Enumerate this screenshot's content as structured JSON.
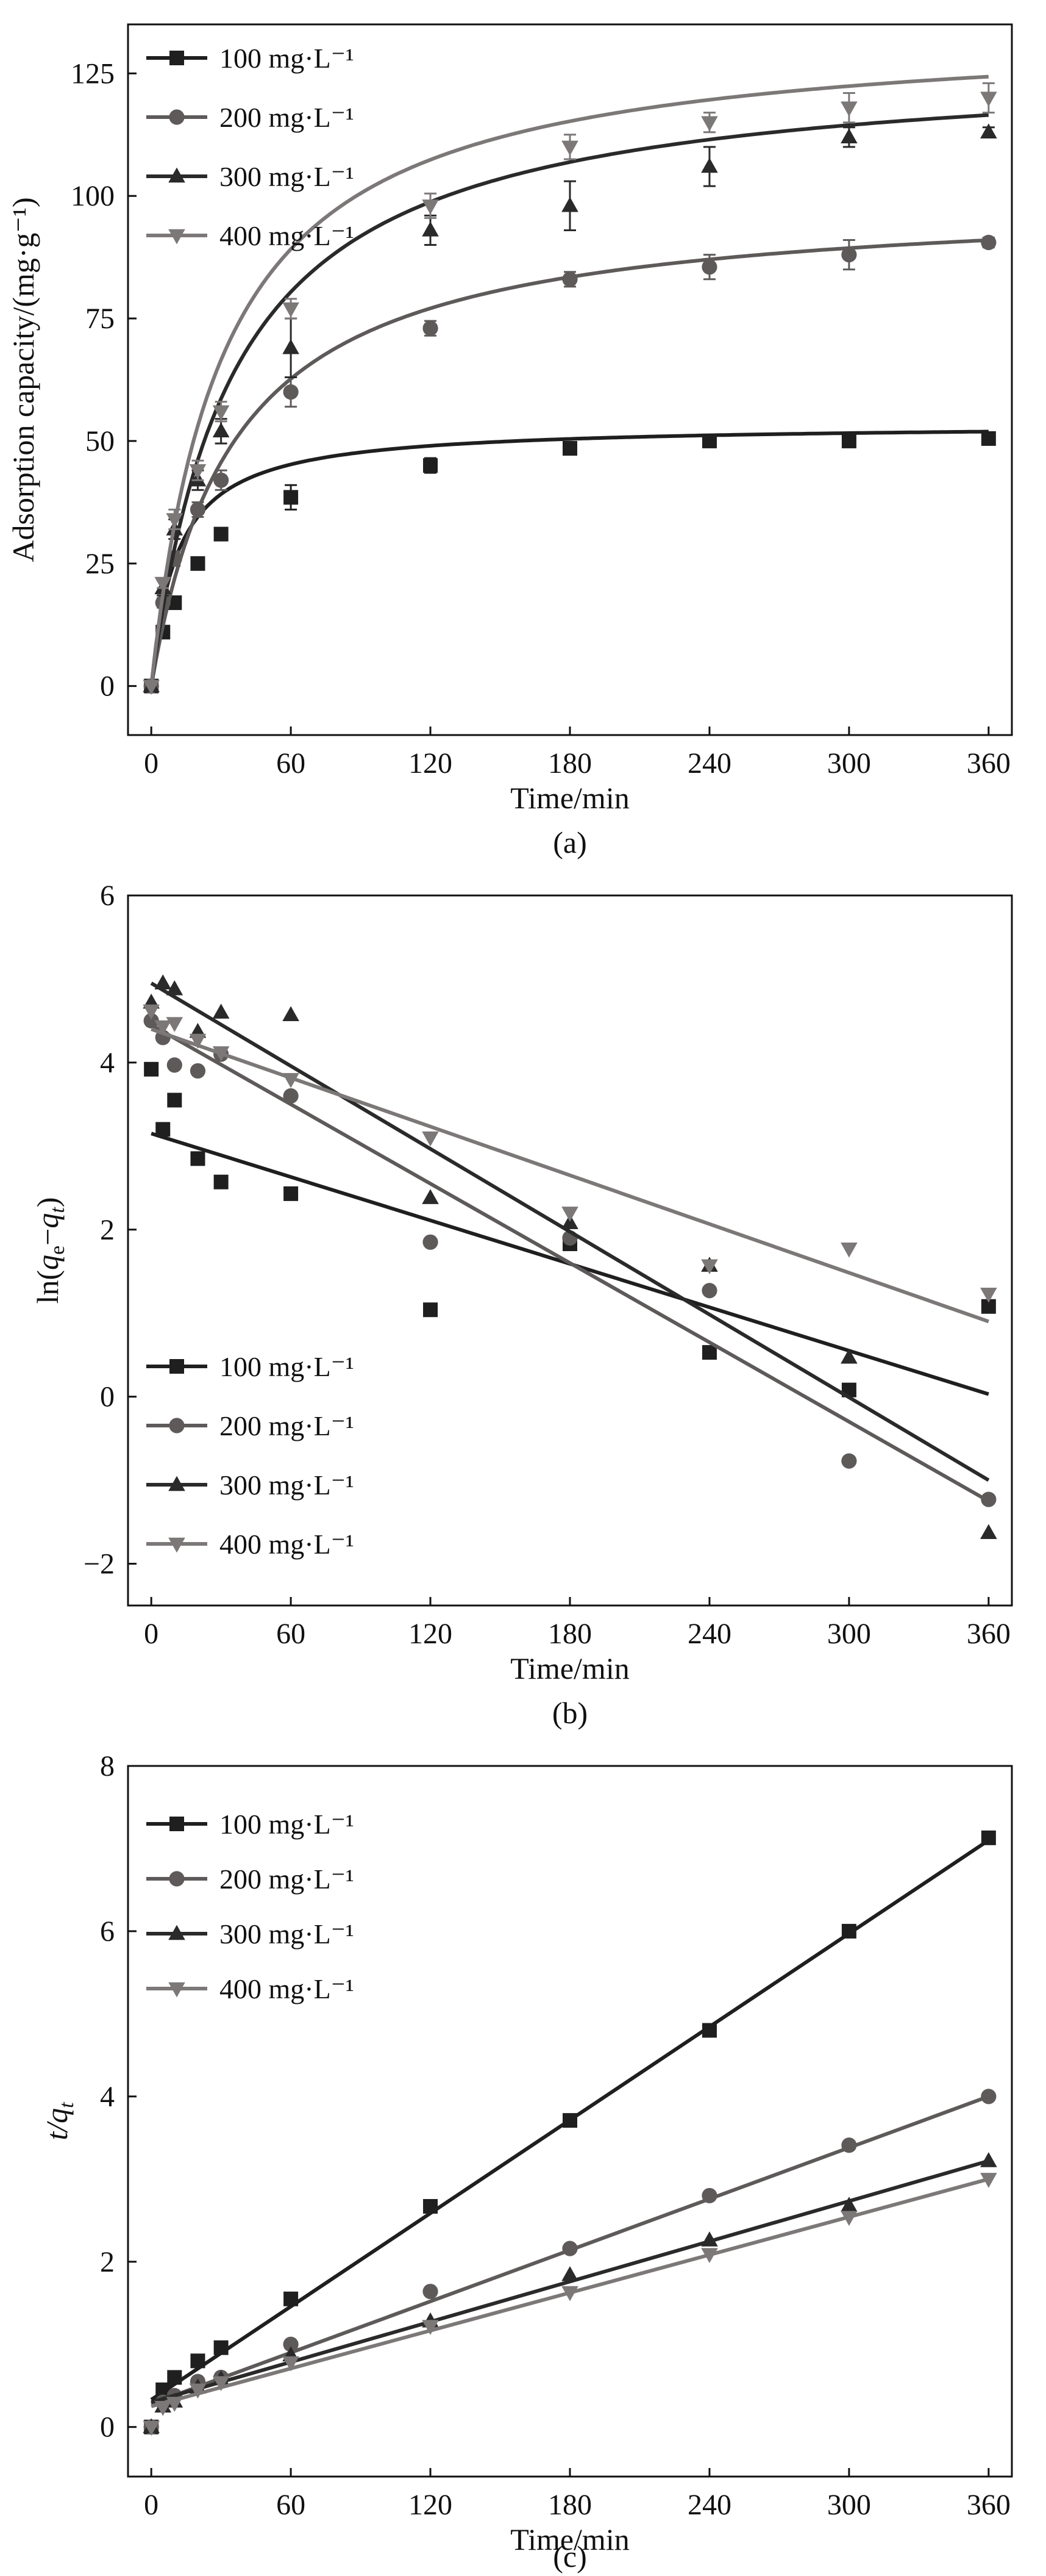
{
  "colors": {
    "100": "#1f1f1f",
    "200": "#5e5a5a",
    "300": "#2a2a2a",
    "400": "#7d7878",
    "axis": "#111111"
  },
  "chart_data": [
    {
      "panel_label": "(a)",
      "type": "scatter",
      "xlabel": "Time/min",
      "ylabel": "Adsorption capacity/(mg·g⁻¹)",
      "xlim": [
        -10,
        370
      ],
      "ylim": [
        -10,
        135
      ],
      "xticks": [
        0,
        60,
        120,
        180,
        240,
        300,
        360
      ],
      "yticks": [
        0,
        25,
        50,
        75,
        100,
        125
      ],
      "xtick_labels": [
        "0",
        "60",
        "120",
        "180",
        "240",
        "300",
        "360"
      ],
      "ytick_labels": [
        "0",
        "25",
        "50",
        "75",
        "100",
        "125"
      ],
      "legend": {
        "position": "top-left",
        "labels": [
          "100 mg·L⁻¹",
          "200 mg·L⁻¹",
          "300 mg·L⁻¹",
          "400 mg·L⁻¹"
        ]
      },
      "x": [
        0,
        5,
        10,
        20,
        30,
        60,
        120,
        180,
        240,
        300,
        360
      ],
      "series": [
        {
          "name": "100 mg·L⁻¹",
          "marker": "square",
          "color_key": "100",
          "values": [
            0,
            11,
            17,
            25,
            31,
            38.5,
            45,
            48.5,
            50,
            50,
            50.5
          ],
          "errors": [
            0,
            0.8,
            0.8,
            1,
            1,
            2.5,
            1.5,
            1.2,
            1,
            1,
            1
          ],
          "fit": {
            "model": "pso",
            "qe": 53.5,
            "k2": 0.0017
          }
        },
        {
          "name": "200 mg·L⁻¹",
          "marker": "circle",
          "color_key": "200",
          "values": [
            0,
            17,
            26,
            36,
            42,
            60,
            73,
            83,
            85.5,
            88,
            90.5
          ],
          "errors": [
            0,
            1,
            1.5,
            1.5,
            2,
            3,
            1.5,
            1.5,
            2.5,
            3,
            1
          ],
          "fit": {
            "model": "pso",
            "qe": 100,
            "k2": 0.00028
          }
        },
        {
          "name": "300 mg·L⁻¹",
          "marker": "triangle-up",
          "color_key": "300",
          "values": [
            0,
            20,
            32,
            42,
            52,
            69,
            93,
            98,
            106,
            112,
            113
          ],
          "errors": [
            0,
            1.5,
            2,
            2,
            2.5,
            6,
            3,
            5,
            4,
            2,
            1
          ],
          "fit": {
            "model": "pso",
            "qe": 128,
            "k2": 0.00022
          }
        },
        {
          "name": "400 mg·L⁻¹",
          "marker": "triangle-down",
          "color_key": "400",
          "values": [
            0,
            21,
            34,
            44,
            56,
            77,
            98,
            110,
            115,
            118,
            120
          ],
          "errors": [
            0,
            1,
            2,
            2,
            2,
            2,
            2.5,
            2.5,
            2,
            3,
            3
          ],
          "fit": {
            "model": "pso",
            "qe": 135,
            "k2": 0.00024
          }
        }
      ]
    },
    {
      "panel_label": "(b)",
      "type": "scatter",
      "xlabel": "Time/min",
      "ylabel": "ln(qe−qt)",
      "xlim": [
        -10,
        370
      ],
      "ylim": [
        -2.5,
        6
      ],
      "xticks": [
        0,
        60,
        120,
        180,
        240,
        300,
        360
      ],
      "yticks": [
        -2,
        0,
        2,
        4,
        6
      ],
      "xtick_labels": [
        "0",
        "60",
        "120",
        "180",
        "240",
        "300",
        "360"
      ],
      "ytick_labels": [
        "−2",
        "0",
        "2",
        "4",
        "6"
      ],
      "legend": {
        "position": "bottom-left",
        "labels": [
          "100 mg·L⁻¹",
          "200 mg·L⁻¹",
          "300 mg·L⁻¹",
          "400 mg·L⁻¹"
        ]
      },
      "x": [
        0,
        5,
        10,
        20,
        30,
        60,
        120,
        180,
        240,
        300,
        360
      ],
      "series": [
        {
          "name": "100 mg·L⁻¹",
          "marker": "square",
          "color_key": "100",
          "values": [
            3.92,
            3.2,
            3.55,
            2.85,
            2.57,
            2.43,
            1.04,
            1.83,
            0.53,
            0.08,
            1.08
          ],
          "fit": {
            "model": "linear",
            "x": [
              0,
              360
            ],
            "y": [
              3.15,
              0.03
            ]
          }
        },
        {
          "name": "200 mg·L⁻¹",
          "marker": "circle",
          "color_key": "200",
          "values": [
            4.5,
            4.3,
            3.97,
            3.9,
            4.1,
            3.6,
            1.85,
            1.9,
            1.27,
            -0.77,
            -1.23
          ],
          "fit": {
            "model": "linear",
            "x": [
              0,
              360
            ],
            "y": [
              4.45,
              -1.25
            ]
          }
        },
        {
          "name": "300 mg·L⁻¹",
          "marker": "triangle-up",
          "color_key": "300",
          "values": [
            4.72,
            4.95,
            4.88,
            4.37,
            4.6,
            4.57,
            2.38,
            2.08,
            1.57,
            0.47,
            -1.63
          ],
          "fit": {
            "model": "linear",
            "x": [
              0,
              360
            ],
            "y": [
              4.95,
              -1.0
            ]
          }
        },
        {
          "name": "400 mg·L⁻¹",
          "marker": "triangle-down",
          "color_key": "400",
          "values": [
            4.62,
            4.43,
            4.47,
            4.27,
            4.12,
            3.8,
            3.1,
            2.2,
            1.57,
            1.77,
            1.23
          ],
          "fit": {
            "model": "linear",
            "x": [
              0,
              360
            ],
            "y": [
              4.4,
              0.9
            ]
          }
        }
      ]
    },
    {
      "panel_label": "(c)",
      "type": "scatter",
      "xlabel": "Time/min",
      "ylabel": "t/qt",
      "xlim": [
        -10,
        370
      ],
      "ylim": [
        -0.6,
        8
      ],
      "xticks": [
        0,
        60,
        120,
        180,
        240,
        300,
        360
      ],
      "yticks": [
        0,
        2,
        4,
        6,
        8
      ],
      "xtick_labels": [
        "0",
        "60",
        "120",
        "180",
        "240",
        "300",
        "360"
      ],
      "ytick_labels": [
        "0",
        "2",
        "4",
        "6",
        "8"
      ],
      "legend": {
        "position": "top-left",
        "labels": [
          "100 mg·L⁻¹",
          "200 mg·L⁻¹",
          "300 mg·L⁻¹",
          "400 mg·L⁻¹"
        ]
      },
      "x": [
        0,
        5,
        10,
        20,
        30,
        60,
        120,
        180,
        240,
        300,
        360
      ],
      "series": [
        {
          "name": "100 mg·L⁻¹",
          "marker": "square",
          "color_key": "100",
          "values": [
            0,
            0.45,
            0.6,
            0.8,
            0.96,
            1.55,
            2.67,
            3.71,
            4.8,
            6.0,
            7.13
          ],
          "fit": {
            "model": "linear",
            "x": [
              0,
              360
            ],
            "y": [
              0.33,
              7.1
            ]
          }
        },
        {
          "name": "200 mg·L⁻¹",
          "marker": "circle",
          "color_key": "200",
          "values": [
            0,
            0.3,
            0.38,
            0.55,
            0.6,
            1.0,
            1.64,
            2.16,
            2.8,
            3.41,
            4.0
          ],
          "fit": {
            "model": "linear",
            "x": [
              0,
              360
            ],
            "y": [
              0.28,
              4.0
            ]
          }
        },
        {
          "name": "300 mg·L⁻¹",
          "marker": "triangle-up",
          "color_key": "300",
          "values": [
            0,
            0.25,
            0.31,
            0.48,
            0.58,
            0.87,
            1.28,
            1.84,
            2.26,
            2.68,
            3.22
          ],
          "fit": {
            "model": "linear",
            "x": [
              0,
              360
            ],
            "y": [
              0.3,
              3.22
            ]
          }
        },
        {
          "name": "400 mg·L⁻¹",
          "marker": "triangle-down",
          "color_key": "400",
          "values": [
            0,
            0.24,
            0.29,
            0.45,
            0.54,
            0.78,
            1.22,
            1.63,
            2.09,
            2.54,
            3.0
          ],
          "fit": {
            "model": "linear",
            "x": [
              0,
              360
            ],
            "y": [
              0.25,
              3.0
            ]
          }
        }
      ]
    }
  ]
}
